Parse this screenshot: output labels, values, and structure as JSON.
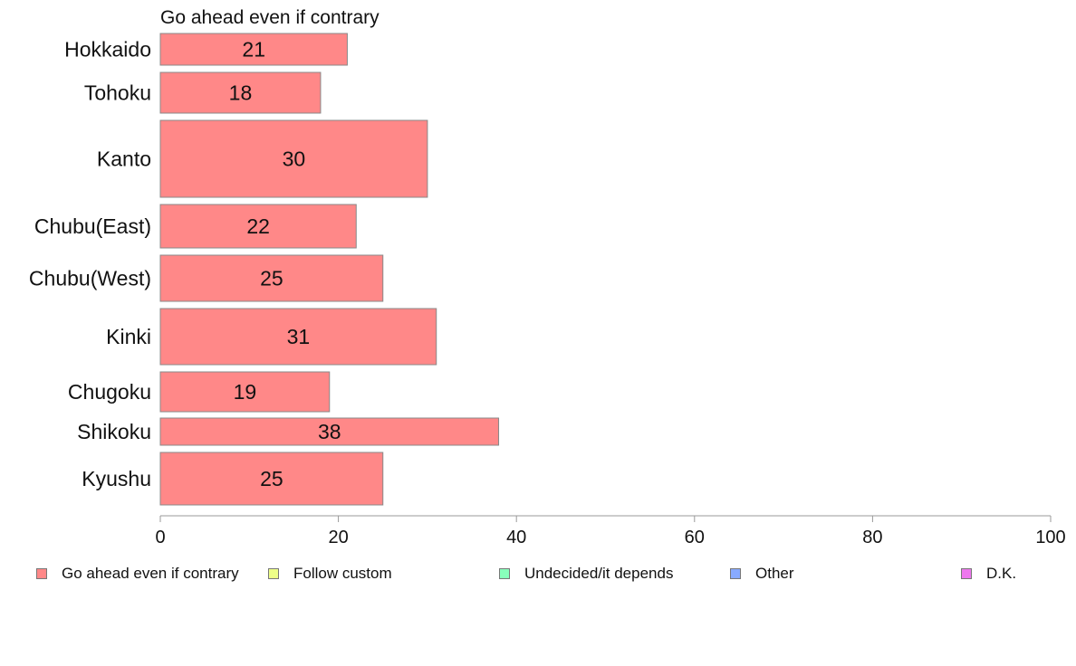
{
  "chart_data": {
    "type": "bar",
    "orientation": "horizontal",
    "title": "Go ahead even if contrary",
    "categories": [
      "Hokkaido",
      "Tohoku",
      "Kanto",
      "Chubu(East)",
      "Chubu(West)",
      "Kinki",
      "Chugoku",
      "Shikoku",
      "Kyushu"
    ],
    "series": [
      {
        "name": "Go ahead even if contrary",
        "color": "#ff8888",
        "values": [
          21,
          18,
          30,
          22,
          25,
          31,
          19,
          38,
          25
        ]
      }
    ],
    "xlim": [
      0,
      100
    ],
    "xticks": [
      0,
      20,
      40,
      60,
      80,
      100
    ],
    "grid": false,
    "legend_position": "bottom"
  },
  "legend": [
    {
      "label": "Go ahead even if contrary",
      "color": "#ff8888"
    },
    {
      "label": "Follow custom",
      "color": "#eeff88"
    },
    {
      "label": "Undecided/it depends",
      "color": "#88ffbb"
    },
    {
      "label": "Other",
      "color": "#88aaff"
    },
    {
      "label": "D.K.",
      "color": "#ee77ee"
    }
  ]
}
